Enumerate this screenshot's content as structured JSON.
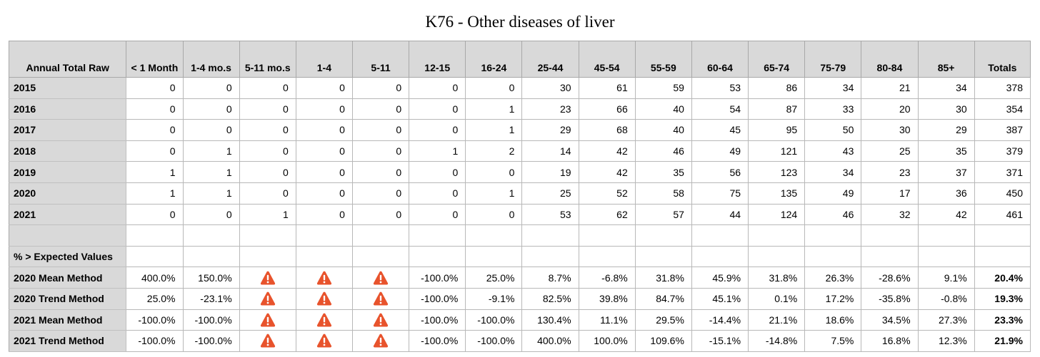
{
  "chart_data": {
    "type": "table",
    "title": "K76 - Other diseases of liver",
    "corner_label": "Annual Total Raw",
    "columns": [
      "< 1 Month",
      "1-4 mo.s",
      "5-11 mo.s",
      "1-4",
      "5-11",
      "12-15",
      "16-24",
      "25-44",
      "45-54",
      "55-59",
      "60-64",
      "65-74",
      "75-79",
      "80-84",
      "85+",
      "Totals"
    ],
    "raw_rows": [
      {
        "label": "2015",
        "values": [
          "0",
          "0",
          "0",
          "0",
          "0",
          "0",
          "0",
          "30",
          "61",
          "59",
          "53",
          "86",
          "34",
          "21",
          "34",
          "378"
        ]
      },
      {
        "label": "2016",
        "values": [
          "0",
          "0",
          "0",
          "0",
          "0",
          "0",
          "1",
          "23",
          "66",
          "40",
          "54",
          "87",
          "33",
          "20",
          "30",
          "354"
        ]
      },
      {
        "label": "2017",
        "values": [
          "0",
          "0",
          "0",
          "0",
          "0",
          "0",
          "1",
          "29",
          "68",
          "40",
          "45",
          "95",
          "50",
          "30",
          "29",
          "387"
        ]
      },
      {
        "label": "2018",
        "values": [
          "0",
          "1",
          "0",
          "0",
          "0",
          "1",
          "2",
          "14",
          "42",
          "46",
          "49",
          "121",
          "43",
          "25",
          "35",
          "379"
        ]
      },
      {
        "label": "2019",
        "values": [
          "1",
          "1",
          "0",
          "0",
          "0",
          "0",
          "0",
          "19",
          "42",
          "35",
          "56",
          "123",
          "34",
          "23",
          "37",
          "371"
        ]
      },
      {
        "label": "2020",
        "values": [
          "1",
          "1",
          "0",
          "0",
          "0",
          "0",
          "1",
          "25",
          "52",
          "58",
          "75",
          "135",
          "49",
          "17",
          "36",
          "450"
        ]
      },
      {
        "label": "2021",
        "values": [
          "0",
          "0",
          "1",
          "0",
          "0",
          "0",
          "0",
          "53",
          "62",
          "57",
          "44",
          "124",
          "46",
          "32",
          "42",
          "461"
        ]
      }
    ],
    "section_label": "% > Expected Values",
    "expected_rows": [
      {
        "label": "2020 Mean Method",
        "values": [
          "400.0%",
          "150.0%",
          "warning",
          "warning",
          "warning",
          "-100.0%",
          "25.0%",
          "8.7%",
          "-6.8%",
          "31.8%",
          "45.9%",
          "31.8%",
          "26.3%",
          "-28.6%",
          "9.1%",
          "20.4%"
        ]
      },
      {
        "label": "2020 Trend Method",
        "values": [
          "25.0%",
          "-23.1%",
          "warning",
          "warning",
          "warning",
          "-100.0%",
          "-9.1%",
          "82.5%",
          "39.8%",
          "84.7%",
          "45.1%",
          "0.1%",
          "17.2%",
          "-35.8%",
          "-0.8%",
          "19.3%"
        ]
      },
      {
        "label": "2021 Mean Method",
        "values": [
          "-100.0%",
          "-100.0%",
          "warning",
          "warning",
          "warning",
          "-100.0%",
          "-100.0%",
          "130.4%",
          "11.1%",
          "29.5%",
          "-14.4%",
          "21.1%",
          "18.6%",
          "34.5%",
          "27.3%",
          "23.3%"
        ]
      },
      {
        "label": "2021 Trend Method",
        "values": [
          "-100.0%",
          "-100.0%",
          "warning",
          "warning",
          "warning",
          "-100.0%",
          "-100.0%",
          "400.0%",
          "100.0%",
          "109.6%",
          "-15.1%",
          "-14.8%",
          "7.5%",
          "16.8%",
          "12.3%",
          "21.9%"
        ]
      }
    ],
    "warning_icon": "warning-triangle-icon",
    "colors": {
      "header_fill": "#d9d9d9",
      "warning": "#e8532c"
    }
  }
}
